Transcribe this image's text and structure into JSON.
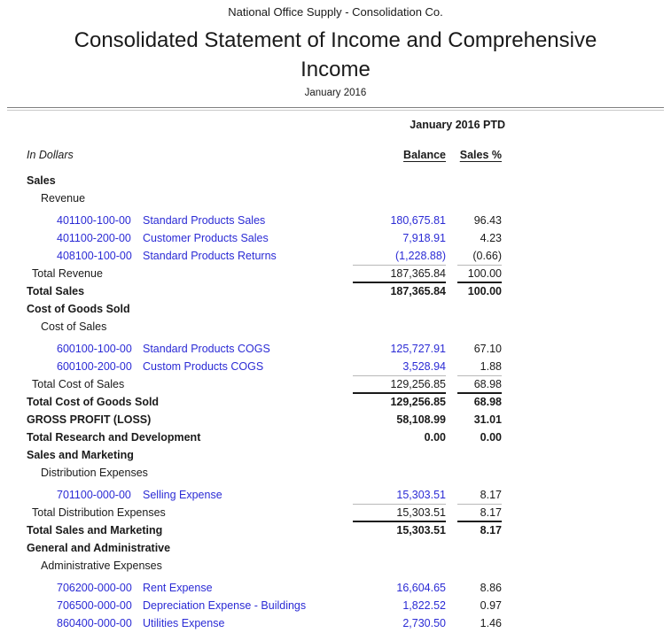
{
  "header": {
    "company": "National Office Supply - Consolidation Co.",
    "title": "Consolidated Statement of Income and Comprehensive Income",
    "period": "January 2016",
    "period_group_header": "January 2016 PTD",
    "units_label": "In Dollars",
    "columns": [
      {
        "label": "Balance"
      },
      {
        "label": "Sales %"
      }
    ]
  },
  "colors": {
    "link_blue": "#2B2BD5",
    "text": "#1A1A1A",
    "rule_gray": "#B8B8B8",
    "rule_black": "#1A1A1A",
    "divider_dark": "#808080",
    "divider_light": "#C9C9C9"
  },
  "rows": [
    {
      "type": "section",
      "label": "Sales"
    },
    {
      "type": "subsection",
      "label": "Revenue"
    },
    {
      "type": "account",
      "first": true,
      "number": "401100-100-00",
      "name": "Standard Products Sales",
      "balance": "180,675.81",
      "sales_pct": "96.43"
    },
    {
      "type": "account",
      "number": "401100-200-00",
      "name": "Customer Products Sales",
      "balance": "7,918.91",
      "sales_pct": "4.23"
    },
    {
      "type": "account",
      "number": "408100-100-00",
      "name": "Standard Products Returns",
      "balance": "(1,228.88)",
      "sales_pct": "(0.66)"
    },
    {
      "type": "subtotal",
      "label": "Total Revenue",
      "balance": "187,365.84",
      "sales_pct": "100.00",
      "rule": "gray"
    },
    {
      "type": "total",
      "label": "Total Sales",
      "balance": "187,365.84",
      "sales_pct": "100.00",
      "rule": "black"
    },
    {
      "type": "section",
      "label": "Cost of Goods Sold"
    },
    {
      "type": "subsection",
      "label": "Cost of Sales"
    },
    {
      "type": "account",
      "first": true,
      "number": "600100-100-00",
      "name": "Standard Products COGS",
      "balance": "125,727.91",
      "sales_pct": "67.10"
    },
    {
      "type": "account",
      "number": "600100-200-00",
      "name": "Custom Products COGS",
      "balance": "3,528.94",
      "sales_pct": "1.88"
    },
    {
      "type": "subtotal",
      "label": "Total Cost of Sales",
      "balance": "129,256.85",
      "sales_pct": "68.98",
      "rule": "gray"
    },
    {
      "type": "total",
      "label": "Total Cost of Goods Sold",
      "balance": "129,256.85",
      "sales_pct": "68.98",
      "rule": "black"
    },
    {
      "type": "total",
      "label": "GROSS PROFIT (LOSS)",
      "balance": "58,108.99",
      "sales_pct": "31.01"
    },
    {
      "type": "total",
      "label": "Total Research and Development",
      "balance": "0.00",
      "sales_pct": "0.00"
    },
    {
      "type": "section",
      "label": "Sales and Marketing"
    },
    {
      "type": "subsection",
      "label": "Distribution Expenses"
    },
    {
      "type": "account",
      "first": true,
      "number": "701100-000-00",
      "name": "Selling Expense",
      "balance": "15,303.51",
      "sales_pct": "8.17"
    },
    {
      "type": "subtotal",
      "label": "Total Distribution Expenses",
      "balance": "15,303.51",
      "sales_pct": "8.17",
      "rule": "gray"
    },
    {
      "type": "total",
      "label": "Total Sales and Marketing",
      "balance": "15,303.51",
      "sales_pct": "8.17",
      "rule": "black"
    },
    {
      "type": "section",
      "label": "General and Administrative"
    },
    {
      "type": "subsection",
      "label": "Administrative Expenses"
    },
    {
      "type": "account",
      "first": true,
      "number": "706200-000-00",
      "name": "Rent Expense",
      "balance": "16,604.65",
      "sales_pct": "8.86"
    },
    {
      "type": "account",
      "number": "706500-000-00",
      "name": "Depreciation Expense - Buildings",
      "balance": "1,822.52",
      "sales_pct": "0.97"
    },
    {
      "type": "account",
      "number": "860400-000-00",
      "name": "Utilities Expense",
      "balance": "2,730.50",
      "sales_pct": "1.46"
    }
  ]
}
